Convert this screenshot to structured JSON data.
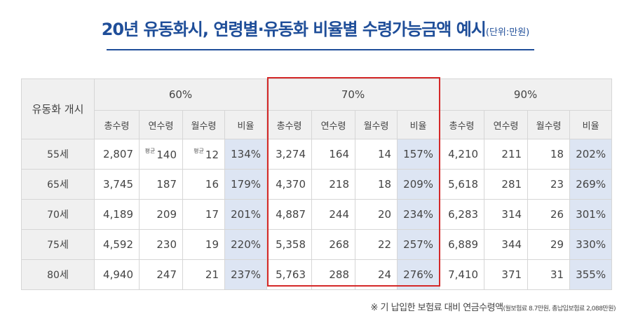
{
  "title": {
    "main": "20년 유동화시, 연령별·유동화 비율별 수령가능금액 예시",
    "unit": "(단위:만원)"
  },
  "table": {
    "start_header": "유동화 개시",
    "groups": [
      "60%",
      "70%",
      "90%"
    ],
    "subheaders": [
      "총수령",
      "연수령",
      "월수령",
      "비율"
    ],
    "avg_label": "평균",
    "rows": [
      {
        "age": "55세",
        "cells": [
          "2,807",
          "140",
          "12",
          "134%",
          "3,274",
          "164",
          "14",
          "157%",
          "4,210",
          "211",
          "18",
          "202%"
        ]
      },
      {
        "age": "65세",
        "cells": [
          "3,745",
          "187",
          "16",
          "179%",
          "4,370",
          "218",
          "18",
          "209%",
          "5,618",
          "281",
          "23",
          "269%"
        ]
      },
      {
        "age": "70세",
        "cells": [
          "4,189",
          "209",
          "17",
          "201%",
          "4,887",
          "244",
          "20",
          "234%",
          "6,283",
          "314",
          "26",
          "301%"
        ]
      },
      {
        "age": "75세",
        "cells": [
          "4,592",
          "230",
          "19",
          "220%",
          "5,358",
          "268",
          "22",
          "257%",
          "6,889",
          "344",
          "29",
          "330%"
        ]
      },
      {
        "age": "80세",
        "cells": [
          "4,940",
          "247",
          "21",
          "237%",
          "5,763",
          "288",
          "24",
          "276%",
          "7,410",
          "371",
          "31",
          "355%"
        ]
      }
    ]
  },
  "footnote": {
    "main": "※ 기 납입한 보험료 대비 연금수령액",
    "detail": "(월보험료 8.7만원, 총납입보험료 2,088만원)"
  },
  "colors": {
    "title": "#1f4e99",
    "header_bg": "#f0f0f0",
    "ratio_bg": "#dde5f3",
    "highlight_border": "#d42828"
  }
}
